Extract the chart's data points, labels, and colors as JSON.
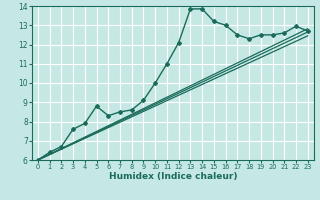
{
  "xlabel": "Humidex (Indice chaleur)",
  "ylabel": "",
  "bg_color": "#c5e8e5",
  "grid_color": "#ffffff",
  "line_color": "#1a6b5a",
  "xlim": [
    -0.5,
    23.5
  ],
  "ylim": [
    6,
    14
  ],
  "xticks": [
    0,
    1,
    2,
    3,
    4,
    5,
    6,
    7,
    8,
    9,
    10,
    11,
    12,
    13,
    14,
    15,
    16,
    17,
    18,
    19,
    20,
    21,
    22,
    23
  ],
  "yticks": [
    6,
    7,
    8,
    9,
    10,
    11,
    12,
    13,
    14
  ],
  "main_x": [
    0,
    1,
    2,
    3,
    4,
    5,
    6,
    7,
    8,
    9,
    10,
    11,
    12,
    13,
    14,
    15,
    16,
    17,
    18,
    19,
    20,
    21,
    22,
    23
  ],
  "main_y": [
    6.0,
    6.4,
    6.7,
    7.6,
    7.9,
    8.8,
    8.3,
    8.5,
    8.6,
    9.1,
    10.0,
    11.0,
    12.1,
    13.85,
    13.85,
    13.2,
    13.0,
    12.5,
    12.3,
    12.5,
    12.5,
    12.6,
    12.95,
    12.7
  ],
  "line1_x": [
    0,
    23
  ],
  "line1_y": [
    6.0,
    12.65
  ],
  "line2_x": [
    0,
    23
  ],
  "line2_y": [
    6.0,
    12.45
  ],
  "line3_x": [
    0,
    23
  ],
  "line3_y": [
    6.0,
    12.82
  ]
}
